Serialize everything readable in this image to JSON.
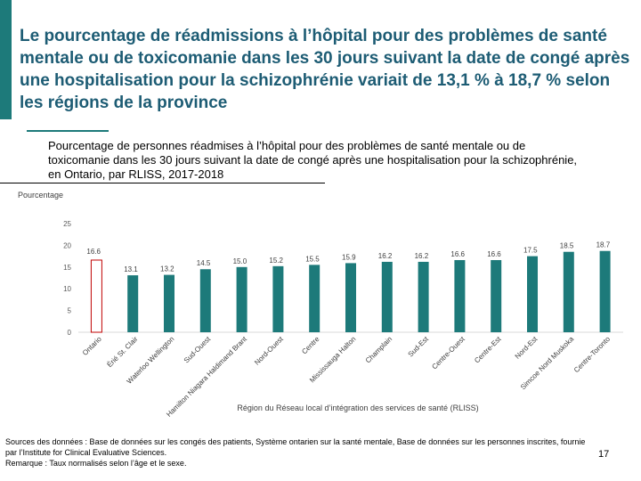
{
  "slide": {
    "title": "Le pourcentage de réadmissions à l’hôpital pour des problèmes de santé mentale ou de toxicomanie dans les 30 jours suivant la date de congé après une hospitalisation pour la schizophrénie variait de 13,1 % à 18,7 % selon les régions de la province",
    "page_number": "17",
    "accent_color": "#1d7a7a",
    "title_color": "#1d5c74"
  },
  "sources": {
    "line1": "Sources des données : Base de données sur les congés des patients, Système ontarien sur la santé mentale, Base de données sur les personnes inscrites, fournie par l’Institute for Clinical Evaluative Sciences.",
    "line2": "Remarque : Taux normalisés selon l’âge et le sexe."
  },
  "chart_data": {
    "type": "bar",
    "title": "Pourcentage de personnes réadmises à l’hôpital pour des problèmes de santé mentale ou de toxicomanie dans les 30 jours suivant la date de congé après une hospitalisation pour la schizophrénie, en Ontario, par RLISS, 2017-2018",
    "ylabel": "Pourcentage",
    "xlabel": "Région du Réseau local d’intégration des services de santé (RLISS)",
    "ylim": [
      0,
      25
    ],
    "yticks": [
      0,
      5,
      10,
      15,
      20,
      25
    ],
    "bar_color": "#1d7a7a",
    "highlight_color": "#ffffff",
    "highlight_border": "#c00000",
    "grid": false,
    "legend": "none",
    "categories": [
      "Ontario",
      "Érié St. Clair",
      "Waterloo Wellington",
      "Sud-Ouest",
      "Hamilton Niagara Haldimand Brant",
      "Nord-Ouest",
      "Centre",
      "Mississauga Halton",
      "Champlain",
      "Sud-Est",
      "Centre-Ouest",
      "Centre-Est",
      "Nord-Est",
      "Simcoe Nord Muskoka",
      "Centre-Toronto"
    ],
    "values": [
      16.6,
      13.1,
      13.2,
      14.5,
      15.0,
      15.2,
      15.5,
      15.9,
      16.2,
      16.2,
      16.6,
      16.6,
      17.5,
      18.5,
      18.7
    ],
    "value_labels": [
      "16.6",
      "13.1",
      "13.2",
      "14.5",
      "15.0",
      "15.2",
      "15.5",
      "15.9",
      "16.2",
      "16.2",
      "16.6",
      "16.6",
      "17.5",
      "18.5",
      "18.7"
    ]
  }
}
